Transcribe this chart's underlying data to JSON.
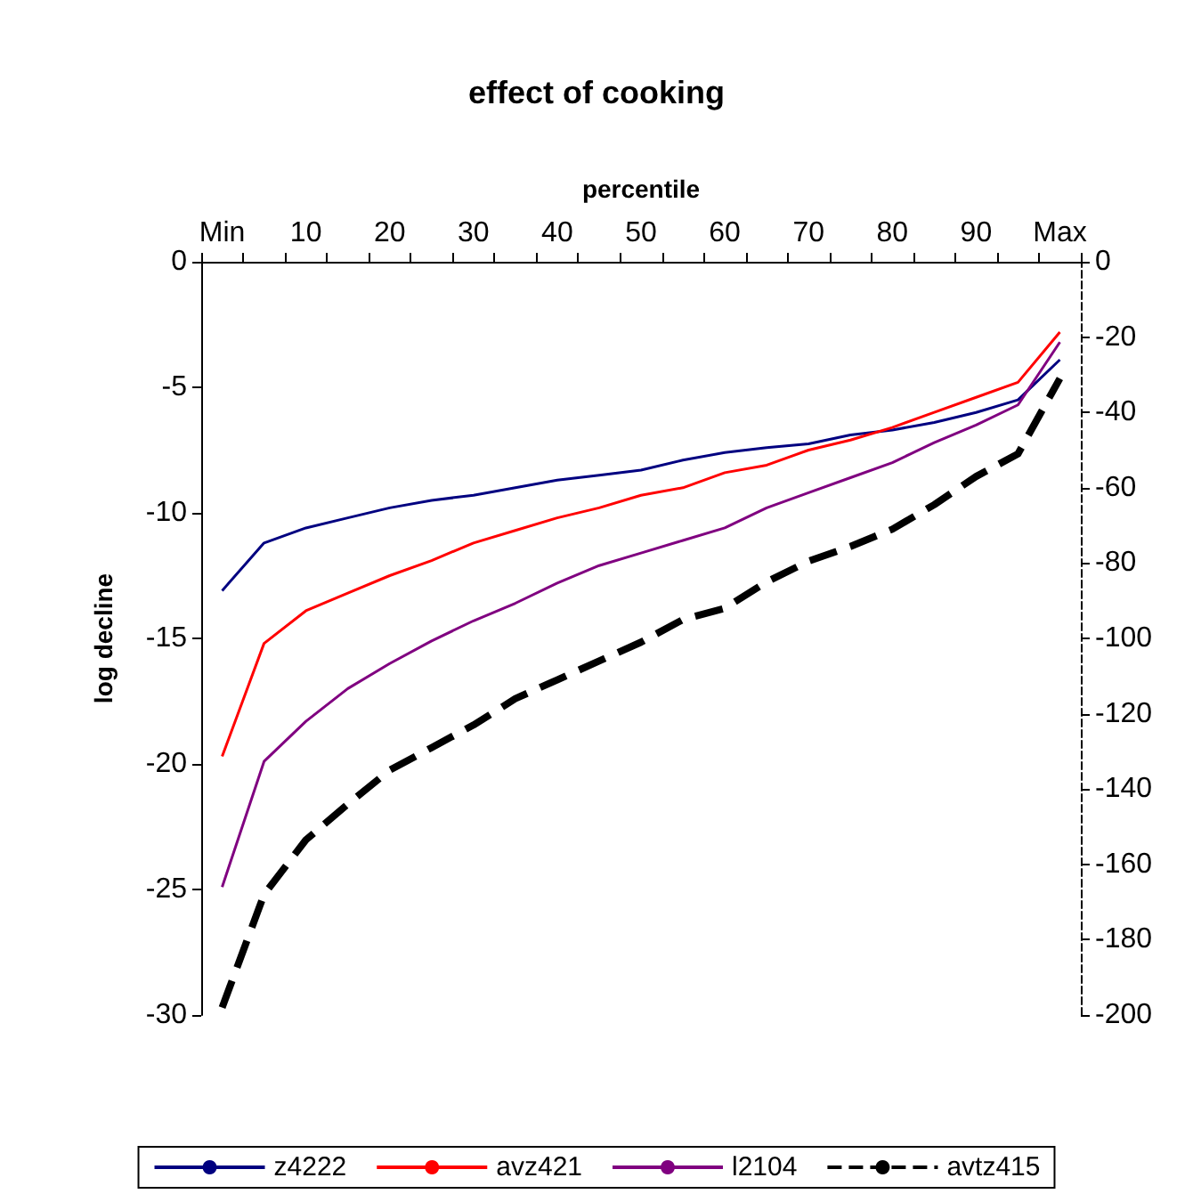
{
  "chart_data": {
    "type": "line",
    "title": "effect of cooking",
    "xlabel": "percentile",
    "ylabel": "log decline",
    "categories": [
      "Min",
      null,
      "10",
      null,
      "20",
      null,
      "30",
      null,
      "40",
      null,
      "50",
      null,
      "60",
      null,
      "70",
      null,
      "80",
      null,
      "90",
      null,
      "Max"
    ],
    "series": [
      {
        "name": "z4222",
        "color": "#000080",
        "values": [
          -13.1,
          -11.2,
          -10.6,
          -10.2,
          -9.8,
          -9.5,
          -9.3,
          -9.0,
          -8.7,
          -8.5,
          -8.3,
          -7.9,
          -7.6,
          -7.4,
          -7.25,
          -6.9,
          -6.7,
          -6.4,
          -6.0,
          -5.5,
          -3.9
        ]
      },
      {
        "name": "avz421",
        "color": "#ff0000",
        "values": [
          -19.7,
          -15.2,
          -13.9,
          -13.2,
          -12.5,
          -11.9,
          -11.2,
          -10.7,
          -10.2,
          -9.8,
          -9.3,
          -9.0,
          -8.4,
          -8.1,
          -7.5,
          -7.1,
          -6.6,
          -6.0,
          -5.4,
          -4.8,
          -2.8
        ]
      },
      {
        "name": "l2104",
        "color": "#800080",
        "values": [
          -24.9,
          -19.9,
          -18.3,
          -17.0,
          -16.0,
          -15.1,
          -14.3,
          -13.6,
          -12.8,
          -12.1,
          -11.6,
          -11.1,
          -10.6,
          -9.8,
          -9.2,
          -8.6,
          -8.0,
          -7.2,
          -6.5,
          -5.7,
          -3.2
        ]
      },
      {
        "name": "avtz415",
        "color": "#000000",
        "axis": "y2",
        "line_style": "dashed",
        "values": [
          -198,
          -168,
          -153.5,
          -144,
          -135,
          -129,
          -123,
          -116,
          -111,
          -106,
          -101,
          -95,
          -92,
          -85,
          -79.5,
          -75.6,
          -71,
          -64.5,
          -57,
          -51,
          -31
        ]
      }
    ],
    "ylim": [
      -30,
      0
    ],
    "yticks": [
      -30,
      -25,
      -20,
      -15,
      -10,
      -5,
      0
    ],
    "y2lim": [
      -200,
      0
    ],
    "y2ticks": [
      -200,
      -180,
      -160,
      -140,
      -120,
      -100,
      -80,
      -60,
      -40,
      -20,
      0
    ],
    "grid": false,
    "legend": "bottom",
    "marker": "none",
    "line_style": "solid"
  }
}
